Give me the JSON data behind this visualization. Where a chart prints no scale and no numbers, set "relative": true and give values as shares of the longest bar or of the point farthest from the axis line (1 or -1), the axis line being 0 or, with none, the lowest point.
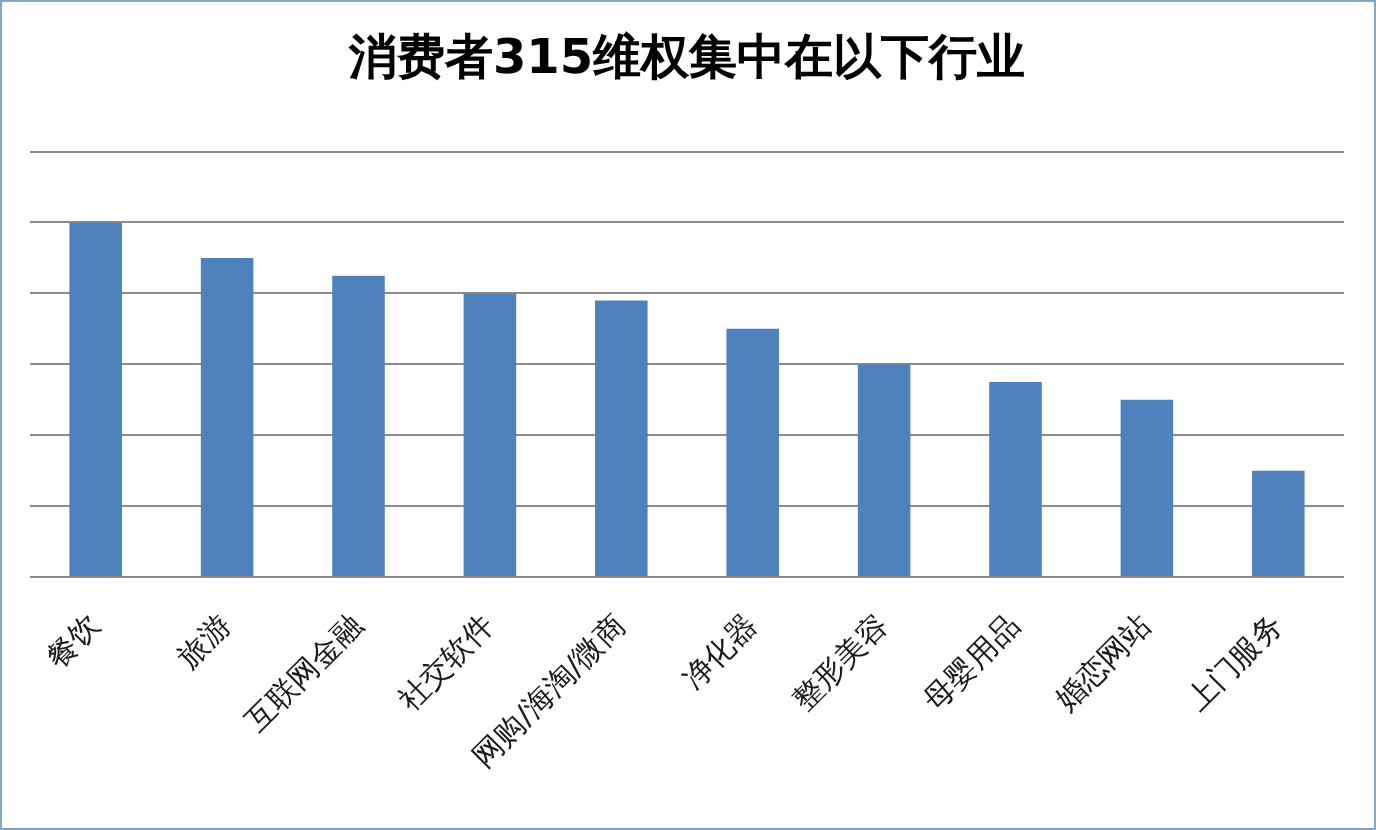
{
  "chart_data": {
    "type": "bar",
    "title": "消费者315维权集中在以下行业",
    "categories": [
      "餐饮",
      "旅游",
      "互联网金融",
      "社交软件",
      "网购/海淘/微商",
      "净化器",
      "整形美容",
      "母婴用品",
      "婚恋网站",
      "上门服务"
    ],
    "values": [
      1,
      0.9,
      0.85,
      0.8,
      0.78,
      0.7,
      0.6,
      0.55,
      0.5,
      0.3
    ],
    "color": "#4f81bd",
    "relative": true,
    "grid": "y"
  }
}
